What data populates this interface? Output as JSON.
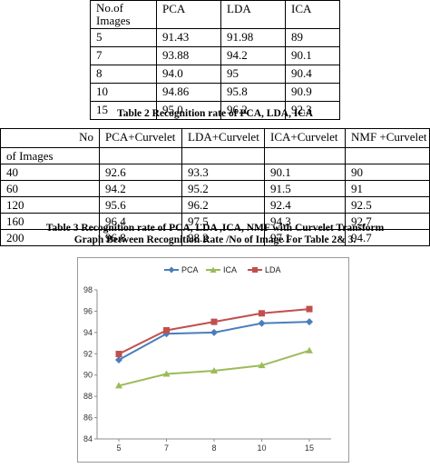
{
  "table2": {
    "headers": [
      "No.of Images",
      "PCA",
      "LDA",
      "ICA"
    ],
    "rows": [
      [
        "5",
        "91.43",
        "91.98",
        "89"
      ],
      [
        "7",
        "93.88",
        "94.2",
        "90.1"
      ],
      [
        "8",
        "94.0",
        "95",
        "90.4"
      ],
      [
        "10",
        "94.86",
        "95.8",
        "90.9"
      ],
      [
        "15",
        "95.0",
        "96.2",
        "92.3"
      ]
    ],
    "caption": "Table 2 Recognition rate of PCA, LDA, ICA"
  },
  "table3": {
    "header_top": [
      "No",
      "PCA+Curvelet",
      "LDA+Curvelet",
      "ICA+Curvelet",
      "NMF +Curvelet"
    ],
    "header_sub": "of Images",
    "rows": [
      [
        "40",
        "92.6",
        "93.3",
        "90.1",
        "90"
      ],
      [
        "60",
        "94.2",
        "95.2",
        "91.5",
        "91"
      ],
      [
        "120",
        "95.6",
        "96.2",
        "92.4",
        "92.5"
      ],
      [
        "160",
        "96.4",
        "97.5",
        "94.3",
        "92.7"
      ],
      [
        "200",
        "96.8",
        "98.2",
        "97.1",
        "94.7"
      ]
    ],
    "caption1": "Table 3 Recognition rate of PCA, LDA ,ICA, NMF with Curvelet Transform",
    "caption2": "Graph Between Recognition Rate /No of Image For Table 2& 3."
  },
  "chart_data": {
    "type": "line",
    "title": "",
    "xlabel": "",
    "ylabel": "",
    "categories": [
      "5",
      "7",
      "8",
      "10",
      "15"
    ],
    "series": [
      {
        "name": "PCA",
        "values": [
          91.43,
          93.88,
          94.0,
          94.86,
          95.0
        ],
        "color": "#4a7ebb"
      },
      {
        "name": "ICA",
        "values": [
          89,
          90.1,
          90.4,
          90.9,
          92.3
        ],
        "color": "#9bbb59"
      },
      {
        "name": "LDA",
        "values": [
          91.98,
          94.2,
          95,
          95.8,
          96.2
        ],
        "color": "#c0504d"
      }
    ],
    "ylim": [
      84,
      98
    ],
    "yticks": [
      "84",
      "86",
      "88",
      "90",
      "92",
      "94",
      "96",
      "98"
    ],
    "grid": false,
    "legend": "top"
  }
}
